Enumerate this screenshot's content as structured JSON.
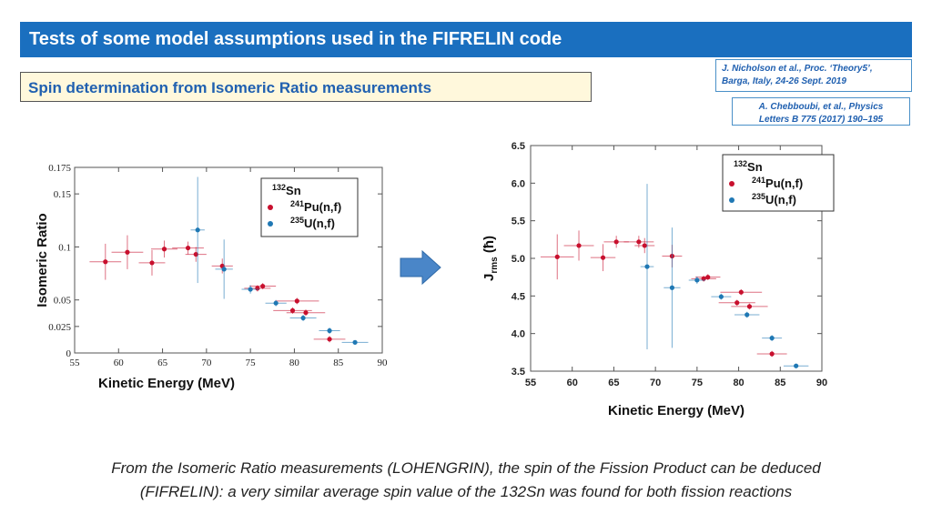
{
  "header": {
    "title": "Tests of some model assumptions used in the FIFRELIN code",
    "subtitle": "Spin determination from Isomeric Ratio measurements"
  },
  "references": {
    "ref1_line1": "J. Nicholson et al., Proc. ‘Theory5’,",
    "ref1_line2": "Barga, Italy, 24-26 Sept. 2019",
    "ref2_line1": "A. Chebboubi, et al., Physics",
    "ref2_line2": "Letters B 775 (2017) 190–195"
  },
  "caption": {
    "line1": "From the Isomeric Ratio measurements (LOHENGRIN), the spin of the Fission Product can be deduced",
    "line2": "(FIFRELIN): a very similar average spin value of the 132Sn was found for both fission reactions"
  },
  "colors": {
    "pu": "#c8102e",
    "u": "#1f78b4",
    "arrow": "#4a86c8",
    "title_bg": "#1a6fbf"
  },
  "chart_data": [
    {
      "type": "scatter",
      "xlabel": "Kinetic Energy (MeV)",
      "ylabel": "Isomeric Ratio",
      "xlim": [
        55,
        90
      ],
      "ylim": [
        0,
        0.175
      ],
      "xticks": [
        "55",
        "60",
        "65",
        "70",
        "75",
        "80",
        "85",
        "90"
      ],
      "yticks": [
        {
          "v": 0,
          "label": "0"
        },
        {
          "v": 0.025,
          "label": "0.025"
        },
        {
          "v": 0.05,
          "label": "0.05"
        },
        {
          "v": 0.1,
          "label": "0.1"
        },
        {
          "v": 0.15,
          "label": "0.15"
        },
        {
          "v": 0.175,
          "label": "0.175"
        }
      ],
      "legend": {
        "nucleus_mass": "132",
        "nucleus_symbol": "Sn",
        "placement": "top-right"
      },
      "series": [
        {
          "name_mass": "241",
          "name_rest": "Pu(n,f)",
          "color": "#c8102e",
          "points": [
            {
              "x": 58.5,
              "y": 0.086,
              "xerr": 1.8,
              "yerr": 0.017
            },
            {
              "x": 61.0,
              "y": 0.095,
              "xerr": 1.8,
              "yerr": 0.016
            },
            {
              "x": 63.8,
              "y": 0.085,
              "xerr": 1.5,
              "yerr": 0.012
            },
            {
              "x": 65.2,
              "y": 0.098,
              "xerr": 1.5,
              "yerr": 0.008
            },
            {
              "x": 67.9,
              "y": 0.099,
              "xerr": 1.8,
              "yerr": 0.006
            },
            {
              "x": 68.8,
              "y": 0.093,
              "xerr": 1.2,
              "yerr": 0.007
            },
            {
              "x": 71.8,
              "y": 0.082,
              "xerr": 1.2,
              "yerr": 0.007
            },
            {
              "x": 75.8,
              "y": 0.061,
              "xerr": 1.5,
              "yerr": 0.003
            },
            {
              "x": 76.4,
              "y": 0.063,
              "xerr": 1.5,
              "yerr": 0.003
            },
            {
              "x": 80.3,
              "y": 0.049,
              "xerr": 2.5,
              "yerr": 0.003
            },
            {
              "x": 79.8,
              "y": 0.04,
              "xerr": 2.2,
              "yerr": 0.003
            },
            {
              "x": 81.3,
              "y": 0.038,
              "xerr": 2.2,
              "yerr": 0.003
            },
            {
              "x": 84.0,
              "y": 0.013,
              "xerr": 1.8,
              "yerr": 0.003
            }
          ]
        },
        {
          "name_mass": "235",
          "name_rest": "U(n,f)",
          "color": "#1f78b4",
          "points": [
            {
              "x": 69.0,
              "y": 0.116,
              "xerr": 0.8,
              "yerr": 0.05
            },
            {
              "x": 72.0,
              "y": 0.079,
              "xerr": 1.0,
              "yerr": 0.028
            },
            {
              "x": 75.0,
              "y": 0.06,
              "xerr": 1.0,
              "yerr": 0.004
            },
            {
              "x": 77.9,
              "y": 0.047,
              "xerr": 1.2,
              "yerr": 0.003
            },
            {
              "x": 81.0,
              "y": 0.033,
              "xerr": 1.5,
              "yerr": 0.003
            },
            {
              "x": 84.0,
              "y": 0.021,
              "xerr": 1.2,
              "yerr": 0.003
            },
            {
              "x": 86.9,
              "y": 0.01,
              "xerr": 1.5,
              "yerr": 0.002
            }
          ]
        }
      ]
    },
    {
      "type": "scatter",
      "xlabel": "Kinetic Energy (MeV)",
      "ylabel_main": "J",
      "ylabel_sub": "rms",
      "ylabel_unit": " (ħ)",
      "xlim": [
        55,
        90
      ],
      "ylim": [
        3.5,
        6.5
      ],
      "xticks": [
        "55",
        "60",
        "65",
        "70",
        "75",
        "80",
        "85",
        "90"
      ],
      "yticks": [
        {
          "v": 3.5,
          "label": "3.5"
        },
        {
          "v": 4.0,
          "label": "4.0"
        },
        {
          "v": 4.5,
          "label": "4.5"
        },
        {
          "v": 5.0,
          "label": "5.0"
        },
        {
          "v": 5.5,
          "label": "5.5"
        },
        {
          "v": 6.0,
          "label": "6.0"
        },
        {
          "v": 6.5,
          "label": "6.5"
        }
      ],
      "legend": {
        "nucleus_mass": "132",
        "nucleus_symbol": "Sn",
        "placement": "top-right"
      },
      "series": [
        {
          "name_mass": "241",
          "name_rest": "Pu(n,f)",
          "color": "#c8102e",
          "points": [
            {
              "x": 58.2,
              "y": 5.02,
              "xerr": 2.0,
              "yerr": 0.3
            },
            {
              "x": 60.8,
              "y": 5.17,
              "xerr": 1.8,
              "yerr": 0.2
            },
            {
              "x": 63.7,
              "y": 5.01,
              "xerr": 1.5,
              "yerr": 0.18
            },
            {
              "x": 65.3,
              "y": 5.22,
              "xerr": 1.5,
              "yerr": 0.08
            },
            {
              "x": 68.0,
              "y": 5.22,
              "xerr": 1.8,
              "yerr": 0.08
            },
            {
              "x": 68.7,
              "y": 5.17,
              "xerr": 1.2,
              "yerr": 0.1
            },
            {
              "x": 72.0,
              "y": 5.03,
              "xerr": 1.2,
              "yerr": 0.15
            },
            {
              "x": 75.8,
              "y": 4.73,
              "xerr": 1.5,
              "yerr": 0.04
            },
            {
              "x": 76.3,
              "y": 4.75,
              "xerr": 1.5,
              "yerr": 0.04
            },
            {
              "x": 80.3,
              "y": 4.55,
              "xerr": 2.5,
              "yerr": 0.04
            },
            {
              "x": 79.8,
              "y": 4.41,
              "xerr": 2.2,
              "yerr": 0.04
            },
            {
              "x": 81.3,
              "y": 4.36,
              "xerr": 2.2,
              "yerr": 0.04
            },
            {
              "x": 84.0,
              "y": 3.73,
              "xerr": 1.8,
              "yerr": 0.04
            }
          ]
        },
        {
          "name_mass": "235",
          "name_rest": "U(n,f)",
          "color": "#1f78b4",
          "points": [
            {
              "x": 69.0,
              "y": 4.89,
              "xerr": 0.8,
              "yerr": 1.1
            },
            {
              "x": 72.0,
              "y": 4.61,
              "xerr": 1.0,
              "yerr": 0.8
            },
            {
              "x": 75.0,
              "y": 4.71,
              "xerr": 1.0,
              "yerr": 0.05
            },
            {
              "x": 77.9,
              "y": 4.49,
              "xerr": 1.2,
              "yerr": 0.04
            },
            {
              "x": 81.0,
              "y": 4.25,
              "xerr": 1.5,
              "yerr": 0.04
            },
            {
              "x": 84.0,
              "y": 3.94,
              "xerr": 1.2,
              "yerr": 0.04
            },
            {
              "x": 86.9,
              "y": 3.57,
              "xerr": 1.5,
              "yerr": 0.03
            }
          ]
        }
      ]
    }
  ]
}
